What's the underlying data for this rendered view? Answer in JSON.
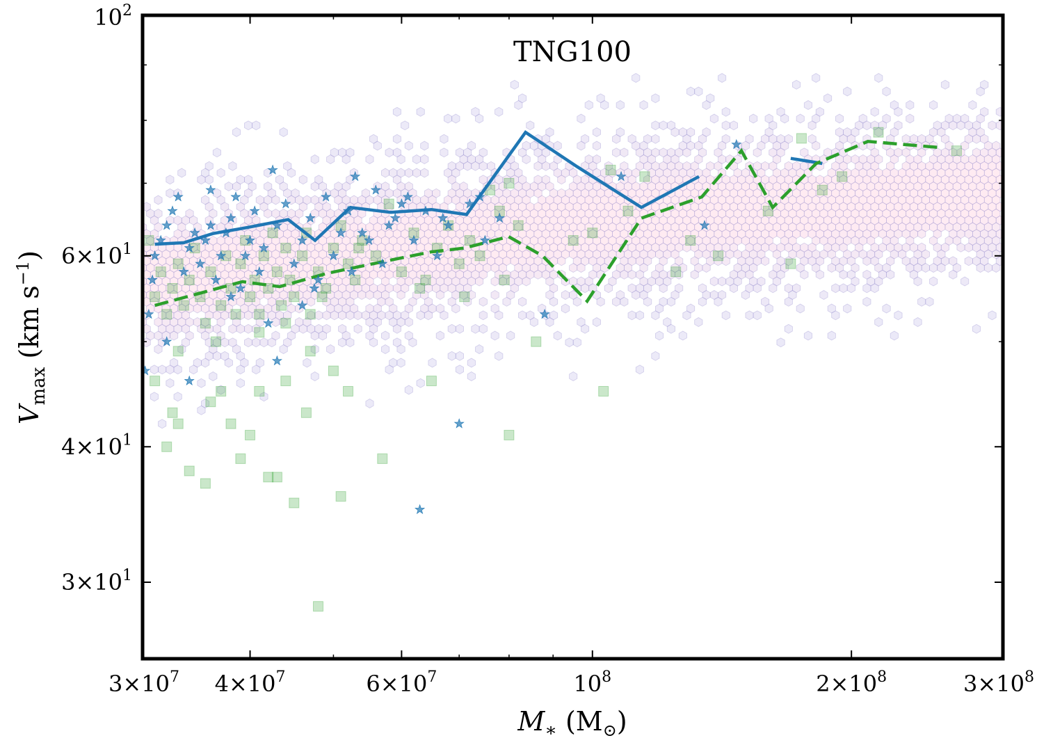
{
  "chart_data": {
    "type": "scatter",
    "title": "TNG100",
    "xlabel": {
      "main": "M",
      "sub": "∗",
      "rest": " (M",
      "sun": "⊙",
      "close": ")"
    },
    "ylabel": {
      "main": "V",
      "sub": "max",
      "rest": " (km s",
      "sup": "−1",
      "close": ")"
    },
    "x_scale": "log",
    "y_scale": "log",
    "xlim": [
      30000000,
      300000000
    ],
    "ylim": [
      25.5,
      100
    ],
    "x_ticks": [
      {
        "value": 30000000,
        "mant": "3",
        "exp": "7"
      },
      {
        "value": 40000000,
        "mant": "4",
        "exp": "7"
      },
      {
        "value": 60000000,
        "mant": "6",
        "exp": "7"
      },
      {
        "value": 100000000,
        "mant": "",
        "exp": "8"
      },
      {
        "value": 200000000,
        "mant": "2",
        "exp": "8"
      },
      {
        "value": 300000000,
        "mant": "3",
        "exp": "8"
      }
    ],
    "y_ticks": [
      {
        "value": 30,
        "mant": "3",
        "exp": "1"
      },
      {
        "value": 40,
        "mant": "4",
        "exp": "1"
      },
      {
        "value": 60,
        "mant": "6",
        "exp": "1"
      },
      {
        "value": 100,
        "mant": "",
        "exp": "2"
      }
    ],
    "x_minor_ticks": [
      50000000,
      70000000,
      80000000,
      90000000
    ],
    "y_minor_ticks": [
      50,
      70,
      80,
      90
    ],
    "hexbin_density": {
      "description_color_low": "#b9b3e6",
      "description_color_high": "#fff0c8",
      "ridge": [
        [
          30000000,
          57
        ],
        [
          50000000,
          60
        ],
        [
          80000000,
          63
        ],
        [
          120000000,
          65.5
        ],
        [
          200000000,
          67
        ],
        [
          300000000,
          69
        ]
      ],
      "spread_dex": 0.045
    },
    "series": [
      {
        "name": "stars",
        "marker": "star",
        "color": "#1f77b4",
        "points": [
          [
            30200000,
            47
          ],
          [
            30500000,
            53
          ],
          [
            30800000,
            57
          ],
          [
            31000000,
            60
          ],
          [
            31500000,
            62
          ],
          [
            32000000,
            64
          ],
          [
            32500000,
            66
          ],
          [
            33000000,
            68
          ],
          [
            33500000,
            58
          ],
          [
            34000000,
            61
          ],
          [
            34500000,
            63
          ],
          [
            35000000,
            59
          ],
          [
            35500000,
            62
          ],
          [
            36000000,
            64
          ],
          [
            36500000,
            57
          ],
          [
            37000000,
            60
          ],
          [
            37500000,
            63
          ],
          [
            38000000,
            65
          ],
          [
            38500000,
            68
          ],
          [
            39000000,
            56
          ],
          [
            39500000,
            60
          ],
          [
            40000000,
            62
          ],
          [
            40500000,
            66
          ],
          [
            41000000,
            58
          ],
          [
            41500000,
            61
          ],
          [
            42000000,
            52
          ],
          [
            42500000,
            72
          ],
          [
            43000000,
            64
          ],
          [
            44000000,
            67
          ],
          [
            45000000,
            59
          ],
          [
            46000000,
            62
          ],
          [
            47000000,
            65
          ],
          [
            48000000,
            57
          ],
          [
            49000000,
            68
          ],
          [
            50000000,
            60
          ],
          [
            51000000,
            63
          ],
          [
            52000000,
            66
          ],
          [
            53000000,
            71
          ],
          [
            55000000,
            62
          ],
          [
            56000000,
            69
          ],
          [
            57000000,
            59
          ],
          [
            58000000,
            64
          ],
          [
            60000000,
            67
          ],
          [
            62000000,
            62
          ],
          [
            63000000,
            35
          ],
          [
            64000000,
            66
          ],
          [
            66000000,
            60
          ],
          [
            68000000,
            64
          ],
          [
            70000000,
            42
          ],
          [
            72000000,
            67
          ],
          [
            75000000,
            62
          ],
          [
            78000000,
            65
          ],
          [
            88000000,
            53
          ],
          [
            108000000,
            71
          ],
          [
            147000000,
            76
          ],
          [
            32000000,
            50
          ],
          [
            34000000,
            46
          ],
          [
            36000000,
            69
          ],
          [
            38000000,
            55
          ],
          [
            43000000,
            48
          ],
          [
            46000000,
            54
          ],
          [
            47500000,
            56
          ],
          [
            52500000,
            58
          ],
          [
            54000000,
            63
          ],
          [
            59000000,
            65
          ],
          [
            61000000,
            68
          ],
          [
            67000000,
            65
          ],
          [
            74000000,
            68
          ],
          [
            135000000,
            64
          ]
        ]
      },
      {
        "name": "squares",
        "marker": "square",
        "color": "#2ca02c",
        "points": [
          [
            31000000,
            46
          ],
          [
            32000000,
            40
          ],
          [
            32500000,
            43
          ],
          [
            33000000,
            42
          ],
          [
            34000000,
            38
          ],
          [
            35500000,
            37
          ],
          [
            36000000,
            44
          ],
          [
            37000000,
            45
          ],
          [
            38000000,
            42
          ],
          [
            39000000,
            39
          ],
          [
            40000000,
            41
          ],
          [
            41000000,
            45
          ],
          [
            42000000,
            37.5
          ],
          [
            43000000,
            37.5
          ],
          [
            44000000,
            46
          ],
          [
            45000000,
            35.5
          ],
          [
            46500000,
            43
          ],
          [
            47000000,
            49
          ],
          [
            48000000,
            28.5
          ],
          [
            50000000,
            47
          ],
          [
            51000000,
            36
          ],
          [
            52000000,
            45
          ],
          [
            57000000,
            39
          ],
          [
            65000000,
            46
          ],
          [
            80000000,
            41
          ],
          [
            86000000,
            50
          ],
          [
            103000000,
            45
          ],
          [
            31000000,
            55
          ],
          [
            31500000,
            58
          ],
          [
            32000000,
            53
          ],
          [
            32500000,
            56
          ],
          [
            33000000,
            59
          ],
          [
            33500000,
            54
          ],
          [
            34000000,
            57
          ],
          [
            34500000,
            61
          ],
          [
            35000000,
            55
          ],
          [
            35500000,
            52
          ],
          [
            36000000,
            58
          ],
          [
            37000000,
            54
          ],
          [
            37500000,
            60
          ],
          [
            38000000,
            56
          ],
          [
            38500000,
            53
          ],
          [
            39000000,
            59
          ],
          [
            39500000,
            62
          ],
          [
            40000000,
            55
          ],
          [
            40500000,
            57
          ],
          [
            41000000,
            53
          ],
          [
            41500000,
            60
          ],
          [
            42000000,
            56
          ],
          [
            42500000,
            63
          ],
          [
            43000000,
            58
          ],
          [
            43500000,
            54
          ],
          [
            44000000,
            61
          ],
          [
            44500000,
            57
          ],
          [
            45000000,
            55
          ],
          [
            46000000,
            60
          ],
          [
            46500000,
            63
          ],
          [
            47000000,
            53
          ],
          [
            48000000,
            58
          ],
          [
            49000000,
            56
          ],
          [
            50000000,
            61
          ],
          [
            51000000,
            64
          ],
          [
            52000000,
            59
          ],
          [
            53000000,
            57
          ],
          [
            54000000,
            62
          ],
          [
            56000000,
            60
          ],
          [
            58000000,
            67
          ],
          [
            60000000,
            58
          ],
          [
            62000000,
            63
          ],
          [
            64000000,
            57
          ],
          [
            66000000,
            61
          ],
          [
            68000000,
            64
          ],
          [
            70000000,
            59
          ],
          [
            72000000,
            62
          ],
          [
            74000000,
            60
          ],
          [
            76000000,
            69
          ],
          [
            78000000,
            66
          ],
          [
            80000000,
            70
          ],
          [
            82000000,
            64
          ],
          [
            95000000,
            62
          ],
          [
            100000000,
            63
          ],
          [
            105000000,
            72
          ],
          [
            110000000,
            66
          ],
          [
            115000000,
            71
          ],
          [
            125000000,
            58
          ],
          [
            130000000,
            62
          ],
          [
            140000000,
            60
          ],
          [
            160000000,
            66
          ],
          [
            170000000,
            59
          ],
          [
            175000000,
            77
          ],
          [
            185000000,
            69
          ],
          [
            195000000,
            71
          ],
          [
            215000000,
            78
          ],
          [
            265000000,
            75
          ],
          [
            30500000,
            62
          ],
          [
            33000000,
            49
          ],
          [
            36500000,
            50
          ],
          [
            41000000,
            51
          ],
          [
            44000000,
            52
          ],
          [
            48500000,
            55
          ],
          [
            53500000,
            61
          ],
          [
            63000000,
            56
          ],
          [
            71000000,
            55
          ],
          [
            79000000,
            57
          ]
        ]
      }
    ],
    "lines": [
      {
        "name": "stars median",
        "color": "#1f77b4",
        "style": "solid",
        "points": [
          [
            31000000,
            61.5
          ],
          [
            33500000,
            61.7
          ],
          [
            36200000,
            62.9
          ],
          [
            39600000,
            63.7
          ],
          [
            44300000,
            64.8
          ],
          [
            47600000,
            62.0
          ],
          [
            52300000,
            66.5
          ],
          [
            58300000,
            65.8
          ],
          [
            65000000,
            66.2
          ],
          [
            71400000,
            65.5
          ],
          [
            83600000,
            78.0
          ],
          [
            96000000,
            72.5
          ],
          [
            114000000,
            66.5
          ],
          [
            133000000,
            71.0
          ]
        ]
      },
      {
        "name": "stars median (high mass)",
        "color": "#1f77b4",
        "style": "solid",
        "points": [
          [
            170000000,
            73.8
          ],
          [
            185000000,
            73.0
          ]
        ]
      },
      {
        "name": "squares median",
        "color": "#2ca02c",
        "style": "dashed",
        "points": [
          [
            31000000,
            54.0
          ],
          [
            36100000,
            55.8
          ],
          [
            39200000,
            56.8
          ],
          [
            43300000,
            56.2
          ],
          [
            49100000,
            57.8
          ],
          [
            56700000,
            59.2
          ],
          [
            64900000,
            60.5
          ],
          [
            71000000,
            61.0
          ],
          [
            79900000,
            62.5
          ],
          [
            87500000,
            60.0
          ],
          [
            98600000,
            54.5
          ],
          [
            114000000,
            65.0
          ],
          [
            134000000,
            68.0
          ],
          [
            149000000,
            75.0
          ],
          [
            162000000,
            66.5
          ],
          [
            182000000,
            73.0
          ],
          [
            209000000,
            76.5
          ],
          [
            254000000,
            75.5
          ]
        ]
      }
    ]
  }
}
